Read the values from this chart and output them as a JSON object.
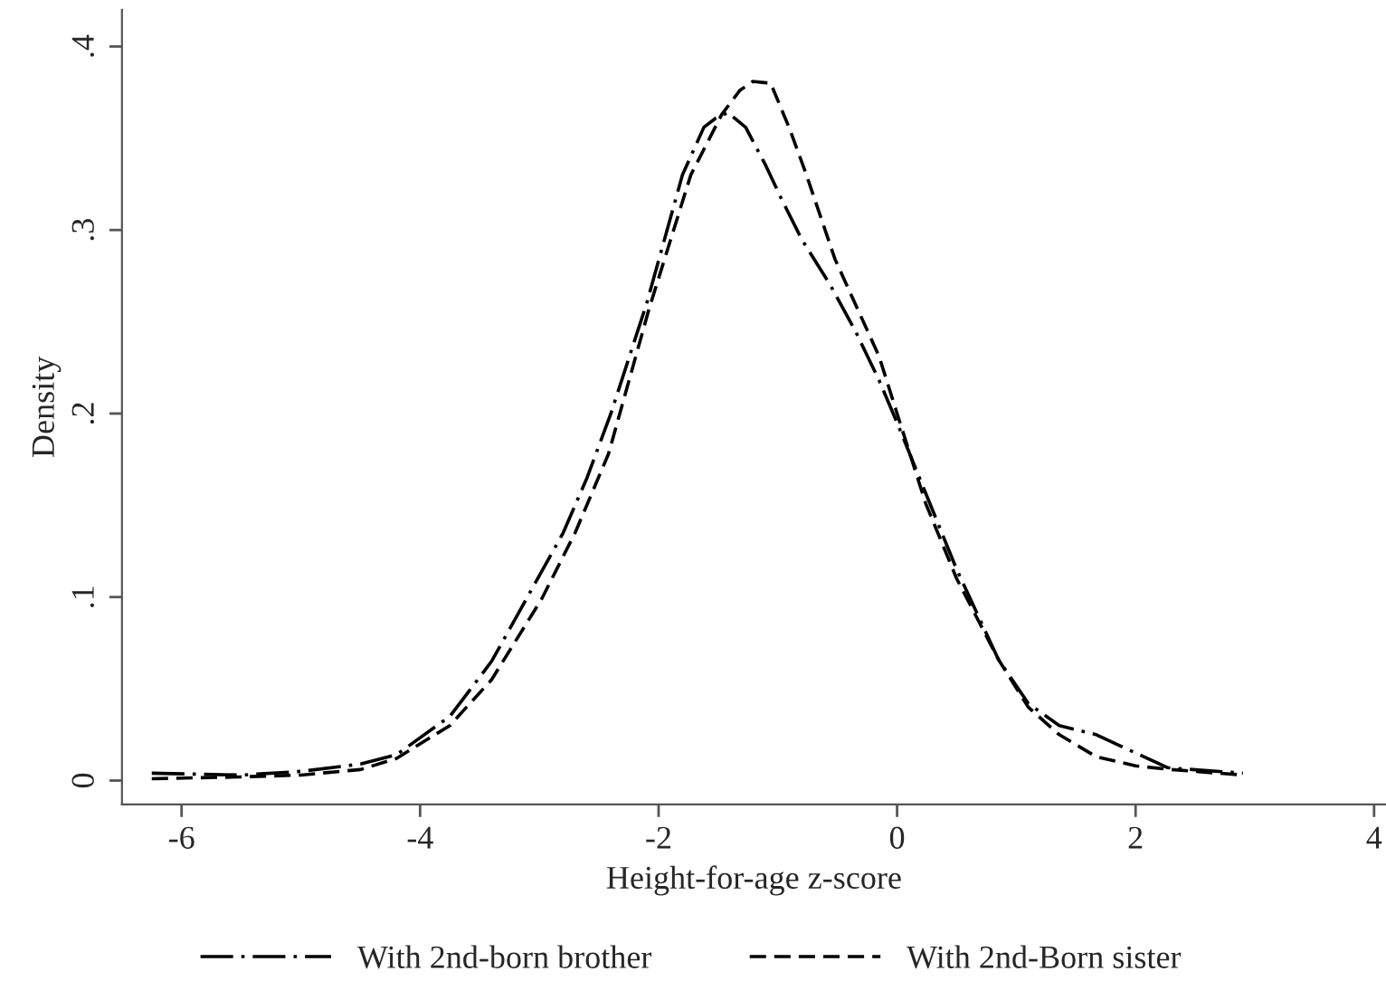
{
  "chart_data": {
    "type": "line",
    "xlabel": "Height-for-age z-score",
    "ylabel": "Density",
    "xlim": [
      -6.5,
      4.1
    ],
    "ylim": [
      -0.013,
      0.42
    ],
    "xticks": [
      -6,
      -4,
      -2,
      0,
      2,
      4
    ],
    "yticks": [
      0,
      {
        "value": 0.1,
        "label": ".1"
      },
      {
        "value": 0.2,
        "label": ".2"
      },
      {
        "value": 0.3,
        "label": ".3"
      },
      {
        "value": 0.4,
        "label": ".4"
      }
    ],
    "grid": false,
    "legend": "bottom",
    "marker": "none",
    "series": [
      {
        "name": "With 2nd-born brother",
        "color": "#000000",
        "line_style": "dashdot",
        "x": [
          -6.25,
          -5.5,
          -5,
          -4.5,
          -4.2,
          -3.75,
          -3.4,
          -3.1,
          -2.8,
          -2.6,
          -2.4,
          -2.1,
          -1.8,
          -1.62,
          -1.52,
          -1.42,
          -1.27,
          -1.1,
          -0.97,
          -0.8,
          -0.56,
          -0.35,
          -0.15,
          0,
          0.25,
          0.5,
          0.85,
          1.1,
          1.36,
          1.67,
          1.9,
          2.27,
          2.9
        ],
        "values": [
          0.004,
          0.003,
          0.005,
          0.009,
          0.014,
          0.035,
          0.065,
          0.1,
          0.135,
          0.165,
          0.2,
          0.26,
          0.33,
          0.356,
          0.361,
          0.364,
          0.356,
          0.335,
          0.317,
          0.295,
          0.27,
          0.245,
          0.218,
          0.195,
          0.155,
          0.115,
          0.066,
          0.042,
          0.03,
          0.025,
          0.018,
          0.007,
          0.004
        ]
      },
      {
        "name": "With 2nd-Born sister",
        "color": "#000000",
        "line_style": "dashed",
        "x": [
          -6.25,
          -5.5,
          -5,
          -4.5,
          -4.2,
          -3.75,
          -3.4,
          -2.98,
          -2.7,
          -2.42,
          -2.08,
          -1.73,
          -1.47,
          -1.32,
          -1.21,
          -1.06,
          -0.9,
          -0.76,
          -0.52,
          -0.15,
          0,
          0.24,
          0.5,
          0.85,
          1.1,
          1.36,
          1.67,
          2,
          2.3,
          2.9
        ],
        "values": [
          0.001,
          0.002,
          0.003,
          0.006,
          0.012,
          0.03,
          0.055,
          0.099,
          0.135,
          0.178,
          0.257,
          0.33,
          0.363,
          0.376,
          0.381,
          0.38,
          0.355,
          0.33,
          0.284,
          0.231,
          0.2,
          0.151,
          0.11,
          0.066,
          0.04,
          0.025,
          0.013,
          0.008,
          0.006,
          0.003
        ]
      }
    ]
  }
}
